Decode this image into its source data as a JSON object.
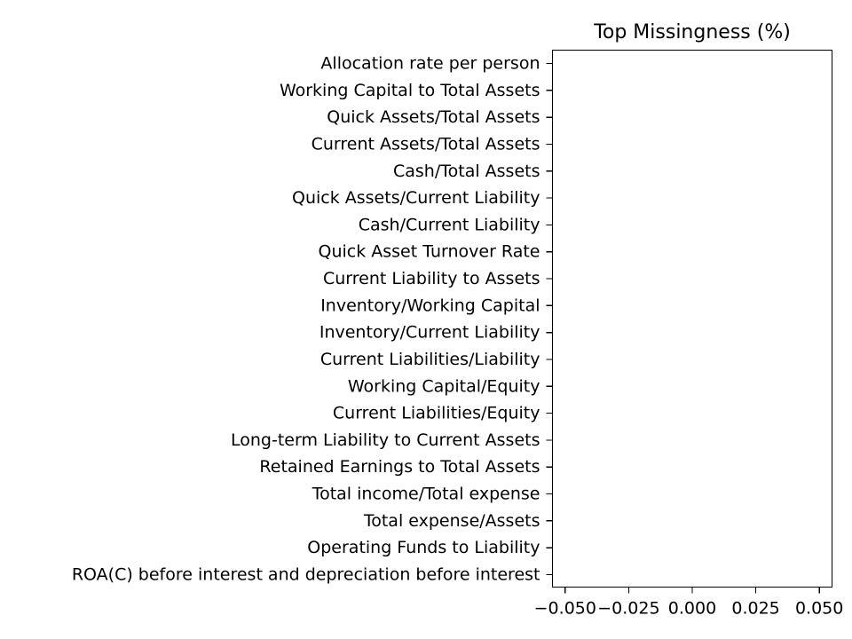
{
  "chart_data": {
    "type": "bar",
    "orientation": "horizontal",
    "title": "Top Missingness (%)",
    "xlabel": "",
    "ylabel": "",
    "categories": [
      "Allocation rate per person",
      "Working Capital to Total Assets",
      "Quick Assets/Total Assets",
      "Current Assets/Total Assets",
      "Cash/Total Assets",
      "Quick Assets/Current Liability",
      "Cash/Current Liability",
      "Quick Asset Turnover Rate",
      "Current Liability to Assets",
      "Inventory/Working Capital",
      "Inventory/Current Liability",
      "Current Liabilities/Liability",
      "Working Capital/Equity",
      "Current Liabilities/Equity",
      "Long-term Liability to Current Assets",
      "Retained Earnings to Total Assets",
      "Total income/Total expense",
      "Total expense/Assets",
      "Operating Funds to Liability",
      "ROA(C) before interest and depreciation before interest"
    ],
    "values": [
      0,
      0,
      0,
      0,
      0,
      0,
      0,
      0,
      0,
      0,
      0,
      0,
      0,
      0,
      0,
      0,
      0,
      0,
      0,
      0
    ],
    "xlim": [
      -0.055,
      0.055
    ],
    "x_ticks": [
      -0.05,
      -0.025,
      0.0,
      0.025,
      0.05
    ],
    "x_tick_labels": [
      "−0.050",
      "−0.025",
      "0.000",
      "0.025",
      "0.050"
    ],
    "grid": false,
    "legend": "none",
    "bar_color": "#1f77b4"
  }
}
